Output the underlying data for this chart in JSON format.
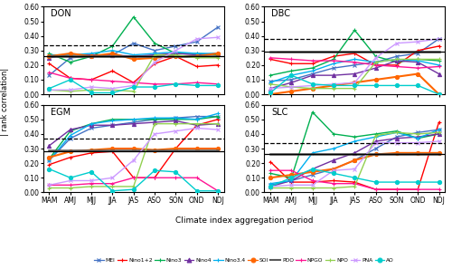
{
  "x_labels": [
    "MAM",
    "AMJ",
    "MJJ",
    "JJA",
    "JAS",
    "ASO",
    "SON",
    "OND",
    "NDJ"
  ],
  "subplots": [
    "DON",
    "DBC",
    "EGM",
    "SLC"
  ],
  "sig5_lines": {
    "DON": 0.26,
    "DBC": 0.293,
    "EGM": 0.284,
    "SLC": 0.26
  },
  "sig1_lines": {
    "DON": 0.335,
    "DBC": 0.378,
    "EGM": 0.366,
    "SLC": 0.335
  },
  "series": {
    "MEI": {
      "color": "#4472C4",
      "marker": "x",
      "linewidth": 1.0,
      "DON": [
        0.13,
        0.25,
        0.26,
        0.27,
        0.35,
        0.3,
        0.33,
        0.36,
        0.46
      ],
      "DBC": [
        0.09,
        0.1,
        0.14,
        0.18,
        0.2,
        0.22,
        0.26,
        0.28,
        0.38
      ],
      "EGM": [
        0.22,
        0.37,
        0.44,
        0.46,
        0.48,
        0.5,
        0.51,
        0.52,
        0.52
      ],
      "SLC": [
        0.05,
        0.08,
        0.12,
        0.16,
        0.22,
        0.3,
        0.38,
        0.41,
        0.43
      ]
    },
    "Nino1+2": {
      "color": "#FF0000",
      "marker": "+",
      "linewidth": 1.0,
      "DON": [
        0.21,
        0.11,
        0.1,
        0.16,
        0.08,
        0.21,
        0.26,
        0.19,
        0.2
      ],
      "DBC": [
        0.24,
        0.21,
        0.21,
        0.26,
        0.28,
        0.2,
        0.2,
        0.3,
        0.33
      ],
      "EGM": [
        0.19,
        0.24,
        0.27,
        0.28,
        0.1,
        0.1,
        0.3,
        0.46,
        0.5
      ],
      "SLC": [
        0.21,
        0.07,
        0.07,
        0.08,
        0.07,
        0.02,
        0.02,
        0.02,
        0.48
      ]
    },
    "Nino3": {
      "color": "#00B050",
      "marker": "+",
      "linewidth": 1.0,
      "DON": [
        0.28,
        0.22,
        0.26,
        0.33,
        0.53,
        0.35,
        0.28,
        0.28,
        0.27
      ],
      "DBC": [
        0.13,
        0.16,
        0.18,
        0.24,
        0.44,
        0.26,
        0.22,
        0.24,
        0.23
      ],
      "EGM": [
        0.23,
        0.42,
        0.47,
        0.5,
        0.5,
        0.5,
        0.5,
        0.5,
        0.52
      ],
      "SLC": [
        0.13,
        0.1,
        0.55,
        0.4,
        0.38,
        0.4,
        0.42,
        0.37,
        0.4
      ]
    },
    "Nino4": {
      "color": "#7030A0",
      "marker": "^",
      "linewidth": 1.0,
      "DON": [
        0.25,
        0.27,
        0.27,
        0.27,
        0.26,
        0.27,
        0.28,
        0.27,
        0.28
      ],
      "DBC": [
        0.04,
        0.08,
        0.13,
        0.13,
        0.14,
        0.18,
        0.23,
        0.22,
        0.14
      ],
      "EGM": [
        0.32,
        0.43,
        0.46,
        0.46,
        0.47,
        0.48,
        0.49,
        0.46,
        0.47
      ],
      "SLC": [
        0.04,
        0.08,
        0.16,
        0.22,
        0.27,
        0.35,
        0.37,
        0.38,
        0.4
      ]
    },
    "Nino3.4": {
      "color": "#00B0F0",
      "marker": "+",
      "linewidth": 1.0,
      "DON": [
        0.27,
        0.27,
        0.28,
        0.3,
        0.27,
        0.28,
        0.29,
        0.28,
        0.28
      ],
      "DBC": [
        0.08,
        0.13,
        0.16,
        0.21,
        0.24,
        0.22,
        0.24,
        0.23,
        0.2
      ],
      "EGM": [
        0.22,
        0.39,
        0.47,
        0.49,
        0.5,
        0.51,
        0.51,
        0.5,
        0.54
      ],
      "SLC": [
        0.06,
        0.08,
        0.27,
        0.3,
        0.35,
        0.38,
        0.41,
        0.37,
        0.43
      ]
    },
    "SOI": {
      "color": "#FF6600",
      "marker": "o",
      "linewidth": 1.5,
      "DON": [
        0.26,
        0.28,
        0.26,
        0.28,
        0.24,
        0.25,
        0.26,
        0.26,
        0.28
      ],
      "DBC": [
        0.0,
        0.02,
        0.04,
        0.06,
        0.08,
        0.1,
        0.12,
        0.14,
        0.0
      ],
      "EGM": [
        0.24,
        0.28,
        0.29,
        0.3,
        0.3,
        0.29,
        0.3,
        0.3,
        0.3
      ],
      "SLC": [
        0.1,
        0.12,
        0.14,
        0.16,
        0.22,
        0.26,
        0.27,
        0.27,
        0.27
      ]
    },
    "PDO": {
      "color": "#595959",
      "marker": null,
      "linewidth": 1.8,
      "DON": [
        0.26,
        0.26,
        0.26,
        0.26,
        0.26,
        0.26,
        0.26,
        0.26,
        0.26
      ],
      "DBC": [
        0.29,
        0.29,
        0.29,
        0.29,
        0.29,
        0.29,
        0.29,
        0.29,
        0.29
      ],
      "EGM": [
        0.29,
        0.29,
        0.29,
        0.29,
        0.29,
        0.29,
        0.29,
        0.29,
        0.29
      ],
      "SLC": [
        0.26,
        0.26,
        0.26,
        0.26,
        0.26,
        0.26,
        0.26,
        0.26,
        0.26
      ]
    },
    "NPGO": {
      "color": "#FF1493",
      "marker": "+",
      "linewidth": 1.0,
      "DON": [
        0.15,
        0.11,
        0.1,
        0.09,
        0.08,
        0.07,
        0.07,
        0.08,
        0.07
      ],
      "DBC": [
        0.25,
        0.24,
        0.23,
        0.23,
        0.22,
        0.2,
        0.19,
        0.18,
        0.19
      ],
      "EGM": [
        0.05,
        0.05,
        0.06,
        0.06,
        0.1,
        0.1,
        0.1,
        0.1,
        0.01
      ],
      "SLC": [
        0.15,
        0.15,
        0.08,
        0.06,
        0.06,
        0.02,
        0.02,
        0.02,
        0.02
      ]
    },
    "NPO": {
      "color": "#92D050",
      "marker": "+",
      "linewidth": 1.0,
      "DON": [
        0.03,
        0.02,
        0.03,
        0.03,
        0.02,
        0.27,
        0.27,
        0.25,
        0.25
      ],
      "DBC": [
        0.07,
        0.05,
        0.04,
        0.04,
        0.04,
        0.22,
        0.24,
        0.24,
        0.24
      ],
      "EGM": [
        0.03,
        0.03,
        0.04,
        0.04,
        0.04,
        0.47,
        0.47,
        0.47,
        0.47
      ],
      "SLC": [
        0.03,
        0.03,
        0.03,
        0.03,
        0.04,
        0.39,
        0.41,
        0.4,
        0.41
      ]
    },
    "PNA": {
      "color": "#CC99FF",
      "marker": "x",
      "linewidth": 1.0,
      "DON": [
        0.03,
        0.03,
        0.05,
        0.04,
        0.06,
        0.22,
        0.3,
        0.38,
        0.39
      ],
      "DBC": [
        0.04,
        0.05,
        0.06,
        0.07,
        0.08,
        0.25,
        0.35,
        0.36,
        0.38
      ],
      "EGM": [
        0.05,
        0.08,
        0.08,
        0.1,
        0.22,
        0.4,
        0.42,
        0.44,
        0.43
      ],
      "SLC": [
        0.04,
        0.05,
        0.05,
        0.15,
        0.16,
        0.34,
        0.34,
        0.34,
        0.35
      ]
    },
    "AO": {
      "color": "#00CDCD",
      "marker": "o",
      "linewidth": 1.0,
      "DON": [
        0.04,
        0.1,
        0.01,
        0.01,
        0.05,
        0.05,
        0.07,
        0.06,
        0.06
      ],
      "DBC": [
        0.01,
        0.13,
        0.07,
        0.06,
        0.06,
        0.06,
        0.06,
        0.06,
        0.0
      ],
      "EGM": [
        0.16,
        0.1,
        0.14,
        0.01,
        0.02,
        0.15,
        0.14,
        0.01,
        0.01
      ],
      "SLC": [
        0.04,
        0.1,
        0.16,
        0.13,
        0.1,
        0.07,
        0.07,
        0.07,
        0.07
      ]
    }
  },
  "legend_order": [
    "MEI",
    "Nino1+2",
    "Nino3",
    "Nino4",
    "Nino3.4",
    "SOI",
    "PDO",
    "NPGO",
    "NPO",
    "PNA",
    "AO"
  ],
  "ylabel": "| rank correlation|",
  "xlabel": "Climate index aggregation period",
  "ylim": [
    0.0,
    0.6
  ],
  "yticks": [
    0.0,
    0.1,
    0.2,
    0.3,
    0.4,
    0.5,
    0.6
  ],
  "figsize": [
    5.0,
    2.97
  ],
  "dpi": 100
}
